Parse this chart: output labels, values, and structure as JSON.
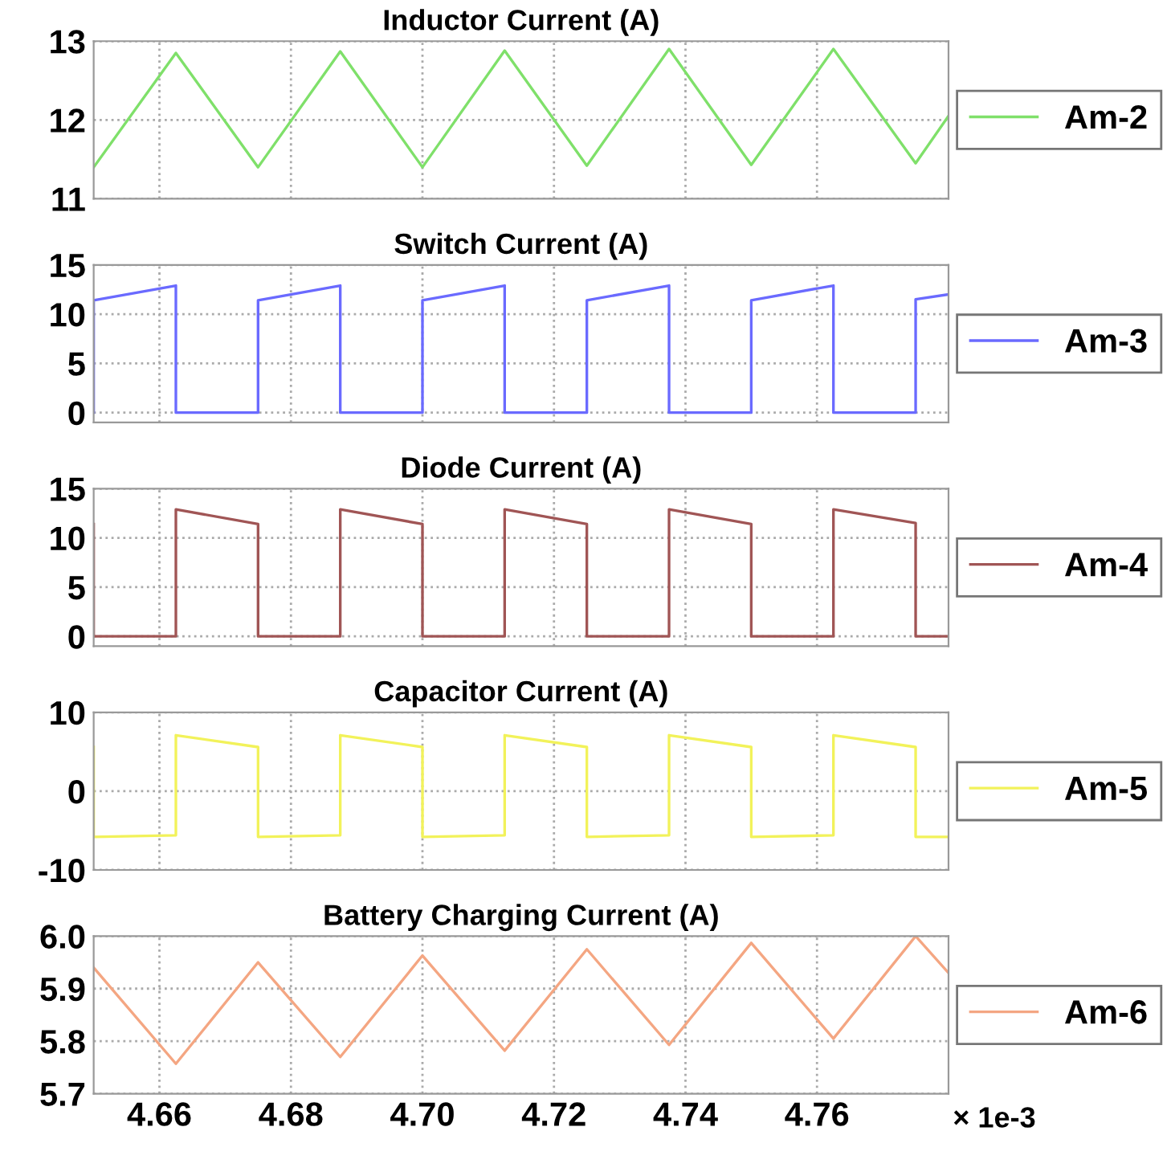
{
  "chart_data": [
    {
      "type": "line",
      "title": "Inductor Current (A)",
      "xlim": [
        4.65,
        4.78
      ],
      "ylim": [
        11,
        13
      ],
      "yticks": [
        11,
        12,
        13
      ],
      "grid": true,
      "legend": "right",
      "tick_labels": "y",
      "series": [
        {
          "name": "Am-2",
          "color": "#7fe06a",
          "x": [
            4.65,
            4.6625,
            4.675,
            4.6875,
            4.7,
            4.7125,
            4.725,
            4.7375,
            4.75,
            4.7625,
            4.775,
            4.78
          ],
          "values": [
            11.4,
            12.85,
            11.4,
            12.87,
            11.4,
            12.88,
            11.42,
            12.9,
            11.43,
            12.9,
            11.45,
            12.05
          ]
        }
      ]
    },
    {
      "type": "line",
      "title": "Switch Current (A)",
      "xlim": [
        4.65,
        4.78
      ],
      "ylim": [
        -1,
        15
      ],
      "yticks": [
        0,
        5,
        10,
        15
      ],
      "grid": true,
      "legend": "right",
      "tick_labels": "y",
      "series": [
        {
          "name": "Am-3",
          "color": "#6a6aff",
          "x": [
            4.65,
            4.65,
            4.6625,
            4.6625,
            4.675,
            4.675,
            4.6875,
            4.6875,
            4.7,
            4.7,
            4.7125,
            4.7125,
            4.725,
            4.725,
            4.7375,
            4.7375,
            4.75,
            4.75,
            4.7625,
            4.7625,
            4.775,
            4.775,
            4.78
          ],
          "values": [
            0,
            11.4,
            12.9,
            0,
            0,
            11.4,
            12.9,
            0,
            0,
            11.4,
            12.9,
            0,
            0,
            11.4,
            12.9,
            0,
            0,
            11.4,
            12.9,
            0,
            0,
            11.5,
            12
          ]
        }
      ]
    },
    {
      "type": "line",
      "title": "Diode Current (A)",
      "xlim": [
        4.65,
        4.78
      ],
      "ylim": [
        -1,
        15
      ],
      "yticks": [
        0,
        5,
        10,
        15
      ],
      "grid": true,
      "legend": "right",
      "tick_labels": "y",
      "series": [
        {
          "name": "Am-4",
          "color": "#a05555",
          "x": [
            4.65,
            4.65,
            4.6625,
            4.6625,
            4.675,
            4.675,
            4.6875,
            4.6875,
            4.7,
            4.7,
            4.7125,
            4.7125,
            4.725,
            4.725,
            4.7375,
            4.7375,
            4.75,
            4.75,
            4.7625,
            4.7625,
            4.775,
            4.775,
            4.78
          ],
          "values": [
            11.4,
            0,
            0,
            12.9,
            11.4,
            0,
            0,
            12.9,
            11.4,
            0,
            0,
            12.9,
            11.4,
            0,
            0,
            12.9,
            11.4,
            0,
            0,
            12.9,
            11.5,
            0,
            0
          ]
        }
      ]
    },
    {
      "type": "line",
      "title": "Capacitor Current (A)",
      "xlim": [
        4.65,
        4.78
      ],
      "ylim": [
        -10,
        10
      ],
      "yticks": [
        -10,
        0,
        10
      ],
      "grid": true,
      "legend": "right",
      "tick_labels": "y",
      "series": [
        {
          "name": "Am-5",
          "color": "#f2f25a",
          "x": [
            4.65,
            4.65,
            4.6625,
            4.6625,
            4.675,
            4.675,
            4.6875,
            4.6875,
            4.7,
            4.7,
            4.7125,
            4.7125,
            4.725,
            4.725,
            4.7375,
            4.7375,
            4.75,
            4.75,
            4.7625,
            4.7625,
            4.775,
            4.775,
            4.78
          ],
          "values": [
            5.6,
            -5.8,
            -5.6,
            7.1,
            5.6,
            -5.8,
            -5.6,
            7.1,
            5.6,
            -5.8,
            -5.6,
            7.1,
            5.6,
            -5.8,
            -5.6,
            7.1,
            5.6,
            -5.8,
            -5.6,
            7.1,
            5.6,
            -5.8,
            -5.8
          ]
        }
      ]
    },
    {
      "type": "line",
      "title": "Battery Charging Current (A)",
      "xlim": [
        4.65,
        4.78
      ],
      "xticks": [
        4.66,
        4.68,
        {
          "value": 4.7,
          "label": "4.70"
        },
        4.72,
        4.74,
        4.76
      ],
      "ylim": [
        5.7,
        6.0
      ],
      "yticks": [
        5.7,
        5.8,
        5.9,
        {
          "value": 6.0,
          "label": "6.0"
        }
      ],
      "grid": true,
      "legend": "right",
      "annotations": [
        "× 1e-3"
      ],
      "series": [
        {
          "name": "Am-6",
          "color": "#f4a682",
          "x": [
            4.65,
            4.6625,
            4.675,
            4.6875,
            4.7,
            4.7125,
            4.725,
            4.7375,
            4.75,
            4.7625,
            4.775,
            4.78
          ],
          "values": [
            5.94,
            5.757,
            5.95,
            5.77,
            5.963,
            5.782,
            5.975,
            5.793,
            5.987,
            5.805,
            6.0,
            5.93
          ]
        }
      ]
    }
  ]
}
